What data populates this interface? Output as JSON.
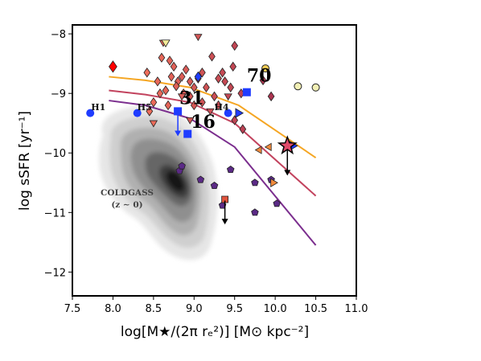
{
  "chart_data": {
    "type": "scatter",
    "xlabel": "log[M★/(2π rₑ²)] [M⊙ kpc⁻²]",
    "ylabel": "log sSFR [yr⁻¹]",
    "xlim": [
      7.5,
      11.0
    ],
    "ylim": [
      -12.4,
      -7.85
    ],
    "x_ticks": [
      "7.5",
      "8.0",
      "8.5",
      "9.0",
      "9.5",
      "10.0",
      "10.5",
      "11.0"
    ],
    "y_ticks": [
      "−8",
      "−9",
      "−10",
      "−11",
      "−12"
    ],
    "grid": false,
    "coldgass_label": "COLDGASS",
    "coldgass_sublabel": "(z ∼ 0)",
    "lines": [
      {
        "color": "#f5a623",
        "x": [
          7.95,
          8.4,
          8.95,
          9.55,
          10.5
        ],
        "y": [
          -8.72,
          -8.78,
          -8.9,
          -9.2,
          -10.08
        ]
      },
      {
        "color": "#c2435e",
        "x": [
          7.95,
          8.4,
          8.95,
          9.5,
          10.5
        ],
        "y": [
          -8.95,
          -9.02,
          -9.15,
          -9.5,
          -10.72
        ]
      },
      {
        "color": "#7b2e8e",
        "x": [
          7.95,
          8.4,
          8.95,
          9.5,
          10.5
        ],
        "y": [
          -9.12,
          -9.2,
          -9.42,
          -9.9,
          -11.55
        ]
      }
    ],
    "points": [
      {
        "name": "H1",
        "x": 7.72,
        "y": -9.33,
        "marker": "circle",
        "color": "#1f3cff"
      },
      {
        "name": "H5",
        "x": 8.3,
        "y": -9.33,
        "marker": "circle",
        "color": "#1f3cff"
      },
      {
        "name": "H4",
        "x": 9.42,
        "y": -9.33,
        "marker": "circle",
        "color": "#1f3cff"
      },
      {
        "name": "31",
        "x": 8.8,
        "y": -9.3,
        "marker": "square",
        "color": "#1f3cff"
      },
      {
        "name": "16",
        "x": 8.92,
        "y": -9.68,
        "marker": "square",
        "color": "#1f3cff"
      },
      {
        "name": "70",
        "x": 9.65,
        "y": -8.98,
        "marker": "square",
        "color": "#1f3cff"
      }
    ],
    "annotations": [
      {
        "text": "70",
        "x": 9.65,
        "y": -8.8,
        "size": "large"
      },
      {
        "text": "31",
        "x": 8.82,
        "y": -9.18,
        "size": "large"
      },
      {
        "text": "16",
        "x": 8.96,
        "y": -9.58,
        "size": "large"
      },
      {
        "text": "H1",
        "x": 7.73,
        "y": -9.28,
        "size": "small"
      },
      {
        "text": "H5",
        "x": 8.3,
        "y": -9.28,
        "size": "small"
      },
      {
        "text": "H4",
        "x": 9.25,
        "y": -9.28,
        "size": "small"
      }
    ],
    "diamonds": [
      [
        8.42,
        -8.65
      ],
      [
        8.6,
        -8.4
      ],
      [
        8.7,
        -8.45
      ],
      [
        8.75,
        -8.55
      ],
      [
        8.8,
        -8.8
      ],
      [
        8.85,
        -8.72
      ],
      [
        8.9,
        -8.6
      ],
      [
        8.95,
        -8.8
      ],
      [
        9.0,
        -8.9
      ],
      [
        9.1,
        -8.65
      ],
      [
        9.15,
        -8.9
      ],
      [
        9.22,
        -8.38
      ],
      [
        9.3,
        -8.75
      ],
      [
        9.38,
        -8.8
      ],
      [
        9.48,
        -8.55
      ],
      [
        9.5,
        -8.2
      ],
      [
        9.45,
        -8.9
      ],
      [
        9.58,
        -9.0
      ],
      [
        8.65,
        -8.95
      ],
      [
        8.72,
        -8.72
      ],
      [
        8.58,
        -9.0
      ],
      [
        8.5,
        -9.15
      ],
      [
        8.68,
        -9.2
      ],
      [
        8.95,
        -9.05
      ],
      [
        9.0,
        -9.2
      ],
      [
        9.1,
        -9.15
      ],
      [
        9.25,
        -9.05
      ],
      [
        9.3,
        -9.2
      ],
      [
        9.5,
        -9.45
      ],
      [
        9.6,
        -9.6
      ],
      [
        9.85,
        -8.78
      ],
      [
        9.95,
        -9.05
      ],
      [
        8.78,
        -8.88
      ],
      [
        8.87,
        -9.0
      ],
      [
        9.05,
        -8.75
      ],
      [
        9.35,
        -8.65
      ],
      [
        8.55,
        -8.8
      ],
      [
        8.45,
        -9.3
      ]
    ],
    "down_triangles": [
      [
        8.62,
        -8.15
      ],
      [
        9.05,
        -8.05
      ],
      [
        8.5,
        -9.5
      ],
      [
        8.85,
        -9.05
      ],
      [
        9.2,
        -9.3
      ],
      [
        9.42,
        -9.05
      ],
      [
        8.95,
        -9.45
      ]
    ],
    "pentagons": [
      [
        8.82,
        -10.3
      ],
      [
        9.08,
        -10.45
      ],
      [
        9.25,
        -10.55
      ],
      [
        9.45,
        -10.28
      ],
      [
        9.75,
        -10.5
      ],
      [
        9.95,
        -10.45
      ],
      [
        9.75,
        -11.0
      ],
      [
        10.02,
        -10.85
      ],
      [
        9.35,
        -10.88
      ],
      [
        8.85,
        -10.22
      ]
    ],
    "left_triangles": [
      [
        9.8,
        -9.95
      ],
      [
        9.92,
        -9.9
      ]
    ],
    "right_triangles": [
      [
        9.98,
        -10.5
      ]
    ],
    "circles": [
      {
        "x": 9.88,
        "y": -8.58,
        "color": "#f5cf57"
      },
      {
        "x": 10.5,
        "y": -8.9,
        "color": "#f2f0b5"
      },
      {
        "x": 10.28,
        "y": -8.88,
        "color": "#f2f0b5"
      }
    ],
    "extra_markers": [
      {
        "shape": "diamond",
        "x": 8.0,
        "y": -8.55,
        "color": "#ff0000",
        "size": 12
      },
      {
        "shape": "down_triangle",
        "x": 8.65,
        "y": -8.15,
        "color": "#f4eb99",
        "size": 10
      },
      {
        "shape": "diamond",
        "x": 9.05,
        "y": -8.72,
        "color": "#1f3cff",
        "size": 10
      },
      {
        "shape": "square",
        "x": 9.38,
        "y": -10.78,
        "color": "#e0533d",
        "size": 8
      }
    ],
    "right_arrow_markers": [
      [
        9.55,
        -9.33
      ],
      [
        10.22,
        -9.88
      ]
    ],
    "down_arrows": [
      {
        "x": 8.8,
        "y1": -9.32,
        "y2": -9.72,
        "color": "#1f3cff"
      },
      {
        "x": 9.38,
        "y1": -10.8,
        "y2": -11.2,
        "color": "#000000"
      },
      {
        "x": 10.15,
        "y1": -9.9,
        "y2": -10.38,
        "color": "#000000"
      }
    ],
    "star": {
      "x": 10.15,
      "y": -9.88,
      "color": "#e04a6a"
    }
  }
}
